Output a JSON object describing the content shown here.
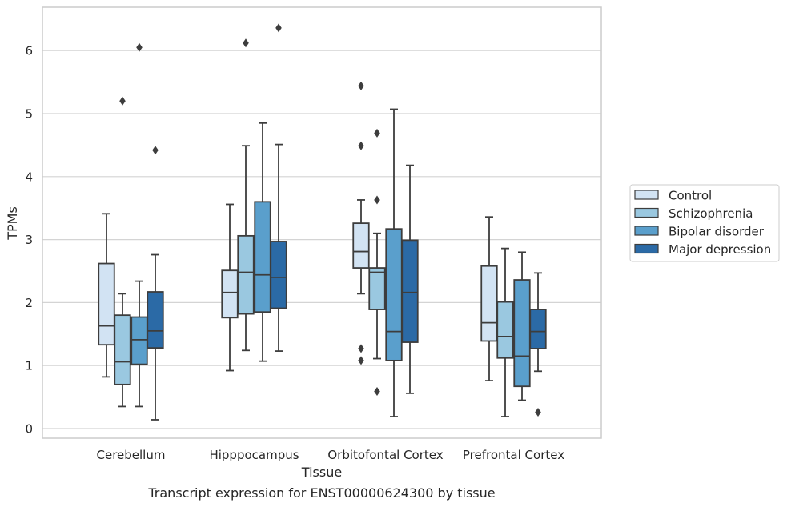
{
  "chart_data": {
    "type": "box",
    "title": "Transcript expression for ENST00000624300 by tissue",
    "xlabel": "Tissue",
    "ylabel": "TPMs",
    "ylim": [
      -0.15,
      6.65
    ],
    "yticks": [
      "0",
      "1",
      "2",
      "3",
      "4",
      "5",
      "6"
    ],
    "grid": true,
    "legend_position": "right",
    "categories": [
      "Cerebellum",
      "Hipppocampus",
      "Orbitofontal Cortex",
      "Prefrontal Cortex"
    ],
    "series": [
      {
        "name": "Control",
        "color": "#d2e3f3",
        "boxes": [
          {
            "whislo": 0.82,
            "q1": 1.33,
            "med": 1.63,
            "q3": 2.62,
            "whishi": 3.41,
            "fliers": []
          },
          {
            "whislo": 0.92,
            "q1": 1.76,
            "med": 2.16,
            "q3": 2.51,
            "whishi": 3.56,
            "fliers": []
          },
          {
            "whislo": 2.14,
            "q1": 2.55,
            "med": 2.81,
            "q3": 3.26,
            "whishi": 3.63,
            "fliers": [
              5.44,
              4.49,
              1.27,
              1.08
            ]
          },
          {
            "whislo": 0.76,
            "q1": 1.39,
            "med": 1.68,
            "q3": 2.58,
            "whishi": 3.36,
            "fliers": []
          }
        ]
      },
      {
        "name": "Schizophrenia",
        "color": "#9ac8e0",
        "boxes": [
          {
            "whislo": 0.35,
            "q1": 0.7,
            "med": 1.06,
            "q3": 1.8,
            "whishi": 2.14,
            "fliers": [
              5.2
            ]
          },
          {
            "whislo": 1.24,
            "q1": 1.82,
            "med": 2.48,
            "q3": 3.06,
            "whishi": 4.49,
            "fliers": [
              6.12
            ]
          },
          {
            "whislo": 1.11,
            "q1": 1.89,
            "med": 2.48,
            "q3": 2.55,
            "whishi": 3.1,
            "fliers": [
              4.69,
              3.63,
              0.59
            ]
          },
          {
            "whislo": 0.19,
            "q1": 1.12,
            "med": 1.46,
            "q3": 2.01,
            "whishi": 2.86,
            "fliers": []
          }
        ]
      },
      {
        "name": "Bipolar disorder",
        "color": "#5a9fcc",
        "boxes": [
          {
            "whislo": 0.35,
            "q1": 1.02,
            "med": 1.41,
            "q3": 1.77,
            "whishi": 2.34,
            "fliers": [
              6.05
            ]
          },
          {
            "whislo": 1.07,
            "q1": 1.85,
            "med": 2.44,
            "q3": 3.6,
            "whishi": 4.85,
            "fliers": []
          },
          {
            "whislo": 0.19,
            "q1": 1.08,
            "med": 1.54,
            "q3": 3.17,
            "whishi": 5.07,
            "fliers": []
          },
          {
            "whislo": 0.45,
            "q1": 0.67,
            "med": 1.15,
            "q3": 2.36,
            "whishi": 2.8,
            "fliers": []
          }
        ]
      },
      {
        "name": "Major depression",
        "color": "#2b6aa6",
        "boxes": [
          {
            "whislo": 0.14,
            "q1": 1.28,
            "med": 1.55,
            "q3": 2.17,
            "whishi": 2.76,
            "fliers": [
              4.42
            ]
          },
          {
            "whislo": 1.23,
            "q1": 1.91,
            "med": 2.4,
            "q3": 2.97,
            "whishi": 4.51,
            "fliers": [
              6.36
            ]
          },
          {
            "whislo": 0.56,
            "q1": 1.37,
            "med": 2.16,
            "q3": 2.99,
            "whishi": 4.18,
            "fliers": []
          },
          {
            "whislo": 0.91,
            "q1": 1.27,
            "med": 1.54,
            "q3": 1.89,
            "whishi": 2.47,
            "fliers": [
              0.26
            ]
          }
        ]
      }
    ]
  }
}
